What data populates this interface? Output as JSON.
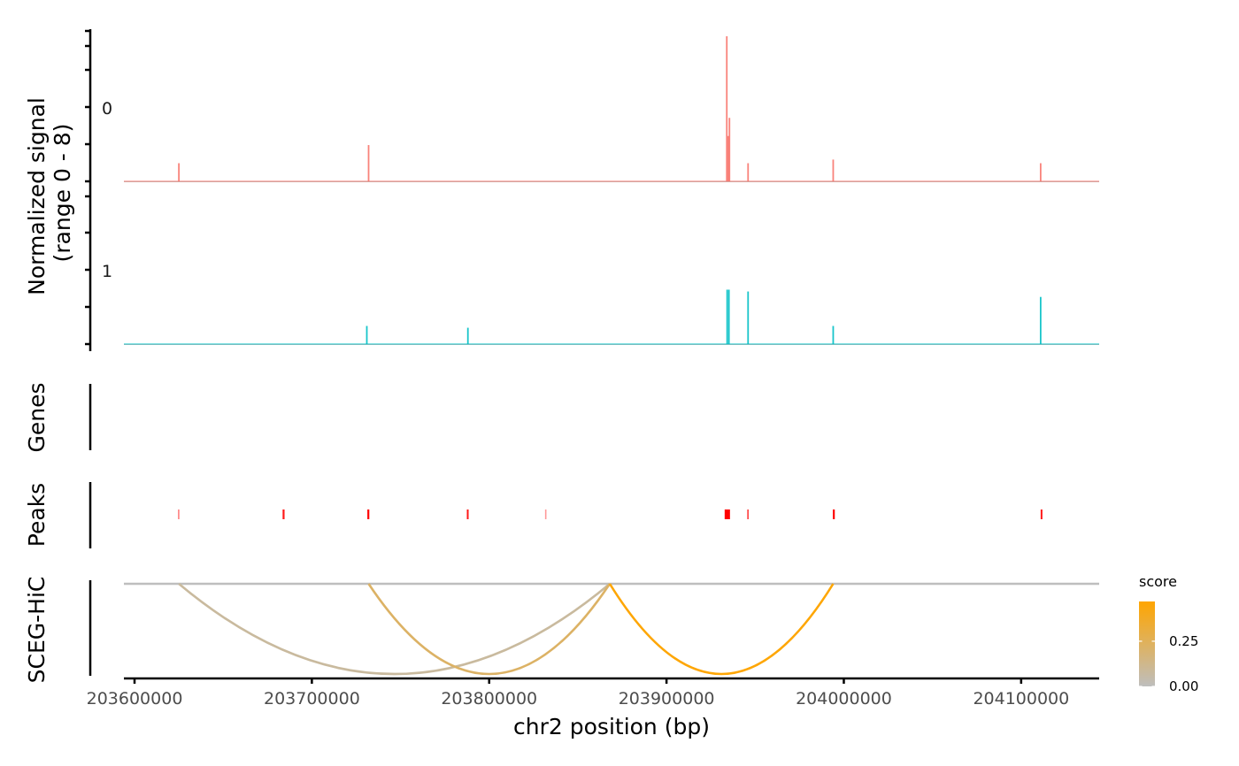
{
  "chart_data": {
    "type": "coverage_track",
    "x_axis": {
      "label": "chr2 position (bp)",
      "range": [
        203594000,
        204144000
      ],
      "ticks": [
        203600000,
        203700000,
        203800000,
        203900000,
        204000000,
        204100000
      ],
      "tick_labels": [
        "203600000",
        "203700000",
        "203800000",
        "203900000",
        "204000000",
        "204100000"
      ]
    },
    "coverage": {
      "ylabel_line1": "Normalized signal",
      "ylabel_line2": "(range 0 - 8)",
      "tracks": [
        {
          "name": "0",
          "color": "#F8766D",
          "spikes": [
            [
              203625000,
              1.0
            ],
            [
              203732000,
              2.0
            ],
            [
              203934000,
              8.0
            ],
            [
              203934800,
              2.5
            ],
            [
              203935500,
              3.5
            ],
            [
              203946000,
              1.0
            ],
            [
              203994000,
              1.2
            ],
            [
              204111000,
              1.0
            ]
          ]
        },
        {
          "name": "1",
          "color": "#00BFC4",
          "spikes": [
            [
              203731000,
              1.0
            ],
            [
              203788000,
              0.9
            ],
            [
              203934200,
              3.0
            ],
            [
              203935200,
              3.0
            ],
            [
              203946000,
              2.9
            ],
            [
              203994000,
              1.0
            ],
            [
              204111000,
              2.6
            ]
          ]
        }
      ]
    },
    "genes": {
      "ylabel": "Genes",
      "items": []
    },
    "peaks": {
      "ylabel": "Peaks",
      "color": "#FF0000",
      "items": [
        [
          203624500,
          203625300,
          0.5
        ],
        [
          203683500,
          203684600,
          0.9
        ],
        [
          203731300,
          203732400,
          1.0
        ],
        [
          203787400,
          203788400,
          0.9
        ],
        [
          203831500,
          203832300,
          0.4
        ],
        [
          203932800,
          203935800,
          1.0
        ],
        [
          203945500,
          203946400,
          0.7
        ],
        [
          203993800,
          203994900,
          1.0
        ],
        [
          204111000,
          204112000,
          0.9
        ]
      ]
    },
    "links": {
      "ylabel": "SCEG-HiC",
      "items": [
        {
          "start": 203625000,
          "end": 203868000,
          "score": 0.08
        },
        {
          "start": 203732000,
          "end": 203868000,
          "score": 0.22
        },
        {
          "start": 203868000,
          "end": 203994000,
          "score": 0.46
        }
      ]
    },
    "legend": {
      "title": "score",
      "gradient_low": "#BEBEBE",
      "gradient_high": "#FFA500",
      "range": [
        0,
        0.47
      ],
      "labels": [
        "0.25",
        "0.00"
      ],
      "label_values": [
        0.25,
        0.0
      ]
    }
  }
}
